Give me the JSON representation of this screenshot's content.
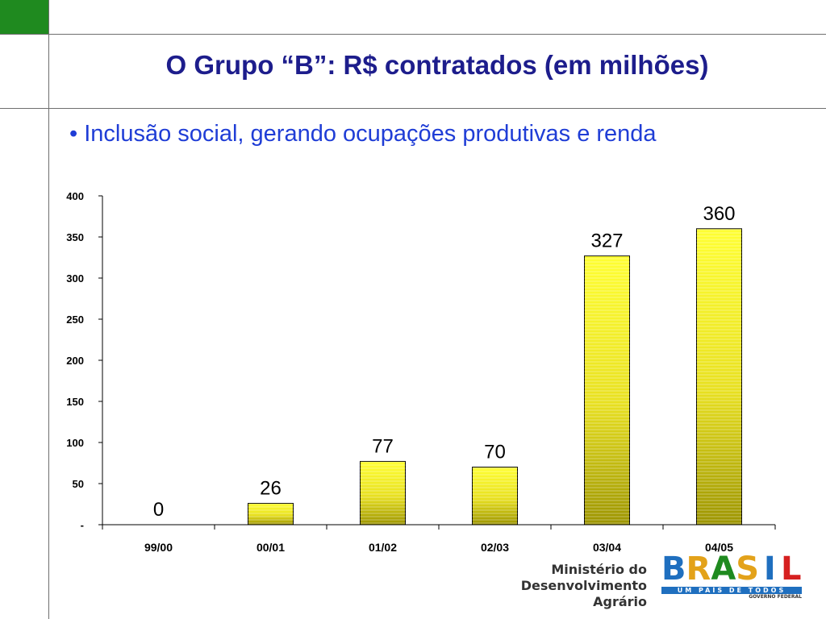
{
  "slide": {
    "title": "O Grupo “B”: R$ contratados (em milhões)",
    "bullet": "• Inclusão social, gerando ocupações produtivas e renda",
    "accent_color": "#1f8a1f",
    "title_color": "#1d1d8c",
    "bullet_color": "#1f3dd6"
  },
  "chart_data": {
    "type": "bar",
    "categories": [
      "99/00",
      "00/01",
      "01/02",
      "02/03",
      "03/04",
      "04/05"
    ],
    "values": [
      0,
      26,
      77,
      70,
      327,
      360
    ],
    "data_labels": [
      "0",
      "26",
      "77",
      "70",
      "327",
      "360"
    ],
    "ylim": [
      0,
      400
    ],
    "yticks": [
      0,
      50,
      100,
      150,
      200,
      250,
      300,
      350,
      400
    ],
    "ytick_labels": [
      "-",
      "50",
      "100",
      "150",
      "200",
      "250",
      "300",
      "350",
      "400"
    ],
    "grid": false,
    "legend": "none",
    "bar_color_top": "#ffff33",
    "bar_color_bottom": "#9c9400"
  },
  "footer": {
    "ministry_line1": "Ministério do",
    "ministry_line2": "Desenvolvimento Agrário",
    "brand_letters": [
      "B",
      "R",
      "A",
      "S",
      "I",
      "L"
    ],
    "brand_colors": [
      "#1f6fbf",
      "#e3a21a",
      "#1f8a1f",
      "#e3a21a",
      "#1f6fbf",
      "#d62020"
    ],
    "brand_tagline": "UM PAÍS DE TODOS",
    "brand_gov": "GOVERNO FEDERAL"
  }
}
